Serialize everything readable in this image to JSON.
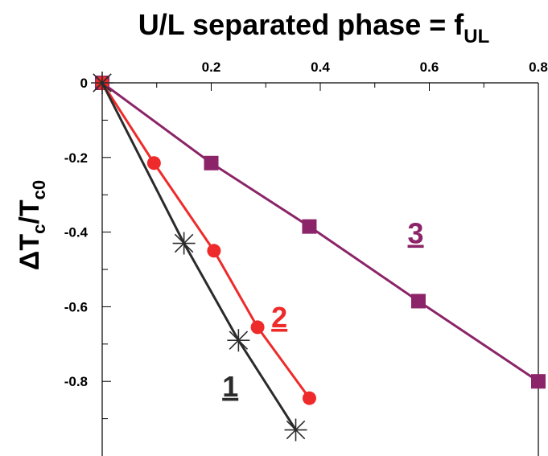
{
  "chart_data": {
    "type": "line",
    "title": "U/L separated phase = f",
    "title_subscript": "UL",
    "ylabel_main": "ΔT",
    "ylabel_sub1": "c",
    "ylabel_mid": "/T",
    "ylabel_sub2": "c0",
    "xlim": [
      0,
      0.8
    ],
    "ylim": [
      -1.0,
      0
    ],
    "x_axis_position": "top",
    "x_ticks": [
      0.2,
      0.4,
      0.6,
      0.8
    ],
    "x_tick_labels": [
      "0.2",
      "0.4",
      "0.6",
      "0.8"
    ],
    "y_ticks": [
      0,
      -0.2,
      -0.4,
      -0.6,
      -0.8
    ],
    "y_tick_labels": [
      "0",
      "-0.2",
      "-0.4",
      "-0.6",
      "-0.8"
    ],
    "grid": false,
    "series": [
      {
        "name": "1",
        "color": "#2b2b2b",
        "marker": "star",
        "x": [
          0,
          0.15,
          0.25,
          0.355
        ],
        "y": [
          0,
          -0.43,
          -0.69,
          -0.93
        ]
      },
      {
        "name": "2",
        "color": "#ee2a2a",
        "marker": "circle",
        "x": [
          0,
          0.095,
          0.205,
          0.285,
          0.38
        ],
        "y": [
          0,
          -0.215,
          -0.45,
          -0.655,
          -0.845
        ]
      },
      {
        "name": "3",
        "color": "#8b2468",
        "marker": "square",
        "x": [
          0,
          0.2,
          0.38,
          0.58,
          0.8
        ],
        "y": [
          0,
          -0.215,
          -0.385,
          -0.585,
          -0.8
        ]
      }
    ]
  }
}
